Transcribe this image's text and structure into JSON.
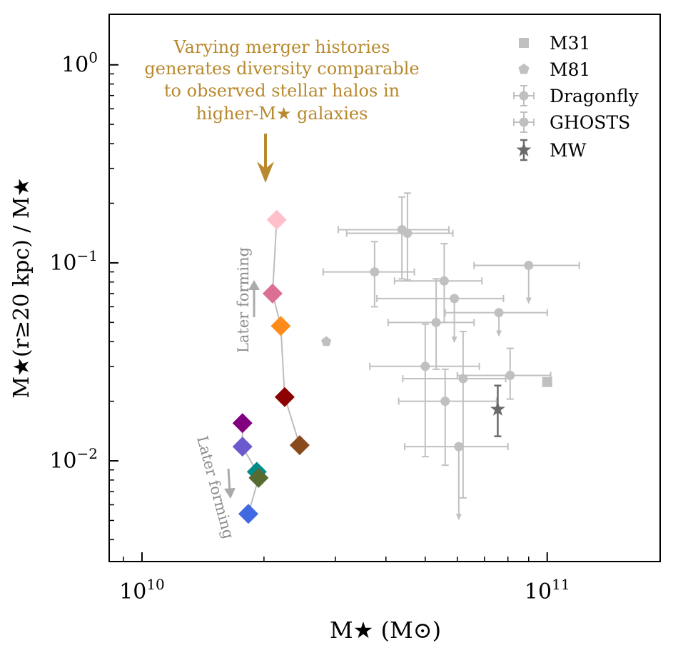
{
  "chart_data": {
    "type": "scatter",
    "xlabel": "M★ (M⊙)",
    "ylabel": "M★(r≥20 kpc) / M★",
    "xscale": "log",
    "yscale": "log",
    "xlim": [
      8300000000.0,
      190000000000.0
    ],
    "ylim": [
      0.0031,
      1.8
    ],
    "x_ticks": [
      {
        "value": 10000000000.0,
        "base": "10",
        "exp": "10"
      },
      {
        "value": 100000000000.0,
        "base": "10",
        "exp": "11"
      }
    ],
    "y_ticks": [
      {
        "value": 1.0,
        "base": "10",
        "exp": "0"
      },
      {
        "value": 0.1,
        "base": "10",
        "exp": "−1"
      },
      {
        "value": 0.01,
        "base": "10",
        "exp": "−2"
      }
    ],
    "grid": false,
    "legend_position": "top-right",
    "legend": [
      {
        "label": "M31",
        "marker": "square",
        "color": "#c0c0c0"
      },
      {
        "label": "M81",
        "marker": "pentagon",
        "color": "#c0c0c0"
      },
      {
        "label": "Dragonfly",
        "marker": "circle-errorbar",
        "color": "#c0c0c0"
      },
      {
        "label": "GHOSTS",
        "marker": "circle-errorbar",
        "color": "#c0c0c0"
      },
      {
        "label": "MW",
        "marker": "star-errorbar",
        "color": "#6b6b6b"
      }
    ],
    "annotation": {
      "lines": [
        "Varying merger histories",
        "generates diversity comparable",
        "to observed stellar halos in",
        "higher-M★ galaxies"
      ],
      "color": "#b8892e"
    },
    "later_forming_labels": [
      "Later forming",
      "Later forming"
    ],
    "simulations": {
      "upper_track": [
        {
          "x": 21500000000.0,
          "y": 0.165,
          "color": "#ffc0cb"
        },
        {
          "x": 21000000000.0,
          "y": 0.07,
          "color": "#db7093"
        },
        {
          "x": 22000000000.0,
          "y": 0.048,
          "color": "#ff8c1a"
        },
        {
          "x": 22500000000.0,
          "y": 0.021,
          "color": "#8b0000"
        },
        {
          "x": 24500000000.0,
          "y": 0.012,
          "color": "#8b4a1c"
        }
      ],
      "lower_track": [
        {
          "x": 17700000000.0,
          "y": 0.0155,
          "color": "#800080"
        },
        {
          "x": 17700000000.0,
          "y": 0.0118,
          "color": "#6a5acd"
        },
        {
          "x": 19200000000.0,
          "y": 0.0088,
          "color": "#008b8b"
        },
        {
          "x": 19400000000.0,
          "y": 0.0082,
          "color": "#556b2f"
        },
        {
          "x": 18300000000.0,
          "y": 0.0054,
          "color": "#4169e1"
        }
      ]
    },
    "observed": [
      {
        "x": 43800000000.0,
        "y": 0.147,
        "xerr": [
          30500000000.0,
          57200000000.0
        ],
        "yerr": [
          0.083,
          0.215
        ],
        "upper": false
      },
      {
        "x": 45200000000.0,
        "y": 0.141,
        "xerr": [
          32000000000.0,
          58500000000.0
        ],
        "yerr": [
          0.082,
          0.225
        ],
        "upper": false
      },
      {
        "x": 37500000000.0,
        "y": 0.09,
        "xerr": [
          28000000000.0,
          47000000000.0
        ],
        "yerr": [
          0.06,
          0.128
        ],
        "upper": false
      },
      {
        "x": 55700000000.0,
        "y": 0.081,
        "xerr": [
          42000000000.0,
          69000000000.0
        ],
        "yerr": [
          0.05,
          0.125
        ],
        "upper": false
      },
      {
        "x": 90000000000.0,
        "y": 0.097,
        "xerr": [
          66000000000.0,
          120000000000.0
        ],
        "yerr": [
          0.063,
          0.097
        ],
        "upper": true
      },
      {
        "x": 59000000000.0,
        "y": 0.066,
        "xerr": [
          38000000000.0,
          78000000000.0
        ],
        "yerr": [
          0.04,
          0.066
        ],
        "upper": true
      },
      {
        "x": 76000000000.0,
        "y": 0.056,
        "xerr": [
          56000000000.0,
          100000000000.0
        ],
        "yerr": [
          0.043,
          0.056
        ],
        "upper": true
      },
      {
        "x": 53200000000.0,
        "y": 0.05,
        "xerr": [
          40500000000.0,
          66000000000.0
        ],
        "yerr": [
          0.029,
          0.083
        ],
        "upper": false
      },
      {
        "x": 50000000000.0,
        "y": 0.03,
        "xerr": [
          36500000000.0,
          68000000000.0
        ],
        "yerr": [
          0.0105,
          0.049
        ],
        "upper": false
      },
      {
        "x": 62000000000.0,
        "y": 0.026,
        "xerr": [
          44000000000.0,
          79000000000.0
        ],
        "yerr": [
          0.0065,
          0.045
        ],
        "upper": false
      },
      {
        "x": 81000000000.0,
        "y": 0.027,
        "xerr": [
          60000000000.0,
          102000000000.0
        ],
        "yerr": [
          0.0205,
          0.037
        ],
        "upper": false
      },
      {
        "x": 56000000000.0,
        "y": 0.02,
        "xerr": [
          43000000000.0,
          75000000000.0
        ],
        "yerr": [
          0.0095,
          0.029
        ],
        "upper": false
      },
      {
        "x": 60500000000.0,
        "y": 0.0118,
        "xerr": [
          44500000000.0,
          80000000000.0
        ],
        "yerr": [
          0.0051,
          0.0118
        ],
        "upper": true
      }
    ],
    "mw": {
      "x": 75500000000.0,
      "y": 0.0182,
      "yerr": [
        0.0133,
        0.024
      ],
      "color": "#6b6b6b"
    },
    "m31": {
      "x": 100000000000.0,
      "y": 0.025,
      "color": "#c0c0c0"
    },
    "m81": {
      "x": 28500000000.0,
      "y": 0.04,
      "color": "#c0c0c0"
    }
  }
}
